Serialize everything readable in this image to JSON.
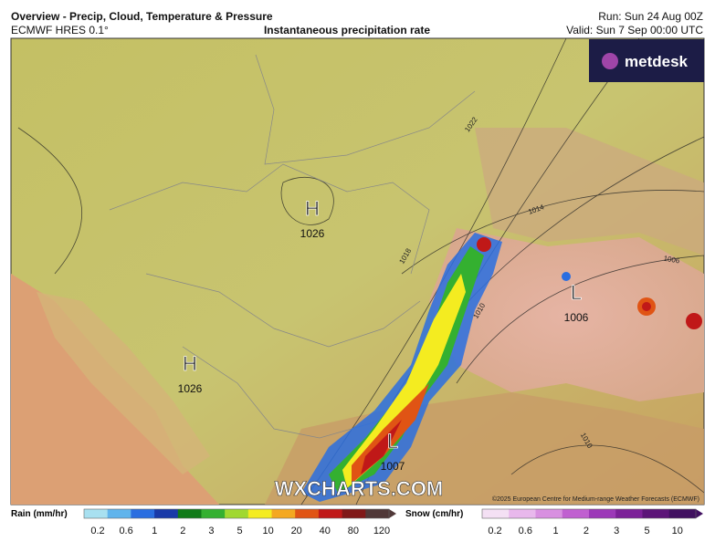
{
  "header": {
    "title": "Overview - Precip, Cloud, Temperature & Pressure",
    "model": "ECMWF HRES 0.1°",
    "subtitle": "Instantaneous precipitation rate",
    "run": "Run: Sun 24 Aug 00Z",
    "valid": "Valid: Sun 7 Sep 00:00 UTC",
    "logo": "metdesk"
  },
  "map": {
    "pressure_centers": [
      {
        "symbol": "H",
        "value": "1026"
      },
      {
        "symbol": "H",
        "value": "1026"
      },
      {
        "symbol": "L",
        "value": "1006"
      },
      {
        "symbol": "L",
        "value": "1007"
      }
    ],
    "isobar_labels": [
      "1022",
      "1014",
      "1018",
      "1010",
      "1006",
      "1010"
    ],
    "watermark": "WXCHARTS.COM",
    "copyright": "©2025 European Centre for Medium-range Weather Forecasts (ECMWF)"
  },
  "legend": {
    "rain": {
      "label": "Rain (mm/hr)",
      "ticks": [
        0.2,
        0.6,
        1,
        2,
        3,
        5,
        10,
        20,
        40,
        80,
        120
      ],
      "colors": [
        "#a8e0f0",
        "#60b4ec",
        "#2a6ee0",
        "#1a3aa8",
        "#107a18",
        "#34b030",
        "#a0d830",
        "#f4ec20",
        "#f4a820",
        "#e05414",
        "#c01818",
        "#801818",
        "#503838"
      ]
    },
    "snow": {
      "label": "Snow (cm/hr)",
      "ticks": [
        0.2,
        0.6,
        1,
        2,
        3,
        5,
        10
      ],
      "colors": [
        "#f4e0f4",
        "#e8b8ec",
        "#d890e0",
        "#c060d0",
        "#9c38b8",
        "#7c2098",
        "#5c1478",
        "#401060"
      ]
    }
  }
}
